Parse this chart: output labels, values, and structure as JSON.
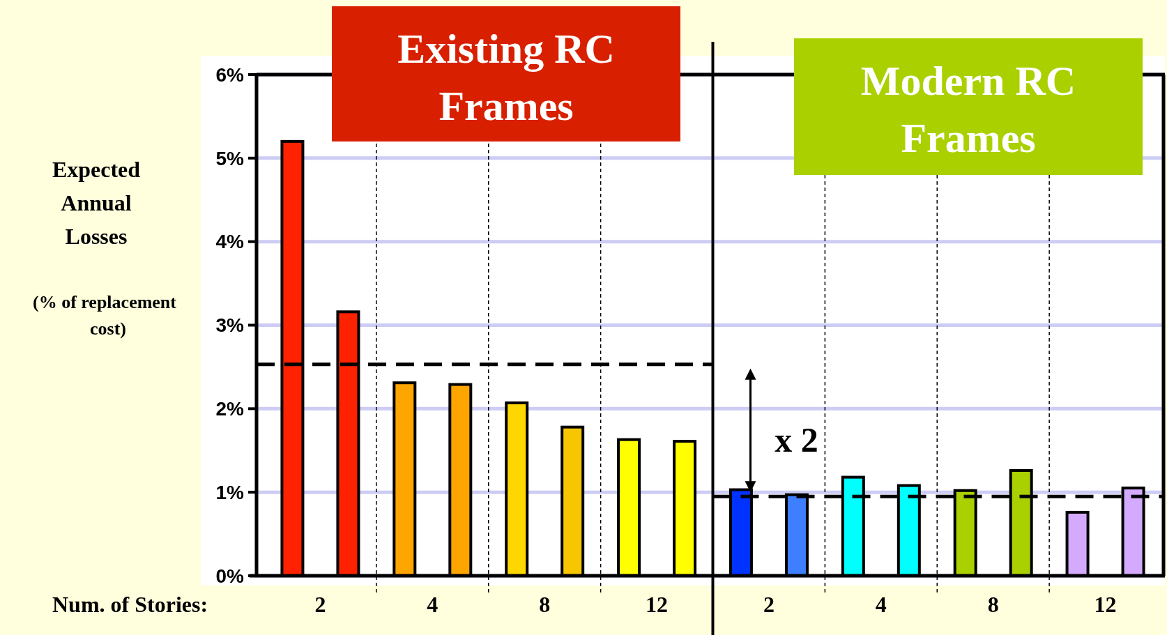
{
  "chart_data": [
    {
      "type": "bar",
      "title": "Existing RC Frames",
      "xlabel": "Num. of Stories:",
      "ylabel": "Expected Annual Losses",
      "categories": [
        "2",
        "4",
        "8",
        "12"
      ],
      "series": [
        {
          "colors": [
            "#ff2200",
            "#ffa500",
            "#ffd700",
            "#ffff00"
          ],
          "values": [
            5.2,
            2.31,
            2.07,
            1.63
          ]
        },
        {
          "colors": [
            "#ff2200",
            "#ffa500",
            "#f7c600",
            "#ffff00"
          ],
          "values": [
            3.16,
            2.29,
            1.78,
            1.61
          ]
        }
      ],
      "ylim": [
        0,
        6
      ],
      "yticks": [
        {
          "value": 0,
          "label": "0%"
        },
        {
          "value": 1,
          "label": "1%"
        },
        {
          "value": 2,
          "label": "2%"
        },
        {
          "value": 3,
          "label": "3%"
        },
        {
          "value": 4,
          "label": "4%"
        },
        {
          "value": 5,
          "label": "5%"
        },
        {
          "value": 6,
          "label": "6%"
        }
      ],
      "grid": "y",
      "ref_lines": [
        {
          "axis": "y",
          "value": 2.53,
          "color": "#000000",
          "line_style": "dashed"
        }
      ],
      "annotations": [
        "(% of replacement cost)"
      ]
    },
    {
      "type": "bar",
      "title": "Modern RC Frames",
      "categories": [
        "2",
        "4",
        "8",
        "12"
      ],
      "series": [
        {
          "colors": [
            "#0033ff",
            "#00ffff",
            "#aad000",
            "#d4aaff"
          ],
          "values": [
            1.03,
            1.18,
            1.02,
            0.76
          ]
        },
        {
          "colors": [
            "#3d7fff",
            "#00ffff",
            "#aad000",
            "#d4aaff"
          ],
          "values": [
            0.97,
            1.08,
            1.26,
            1.05
          ]
        }
      ],
      "ylim": [
        0,
        6
      ],
      "yticks": [
        0,
        1,
        2,
        3,
        4,
        5,
        6
      ],
      "tick_labels": "x",
      "grid": "y",
      "ref_lines": [
        {
          "axis": "y",
          "value": 0.95,
          "color": "#000000",
          "line_style": "dashed"
        }
      ],
      "annotations": [
        "x 2"
      ]
    }
  ]
}
